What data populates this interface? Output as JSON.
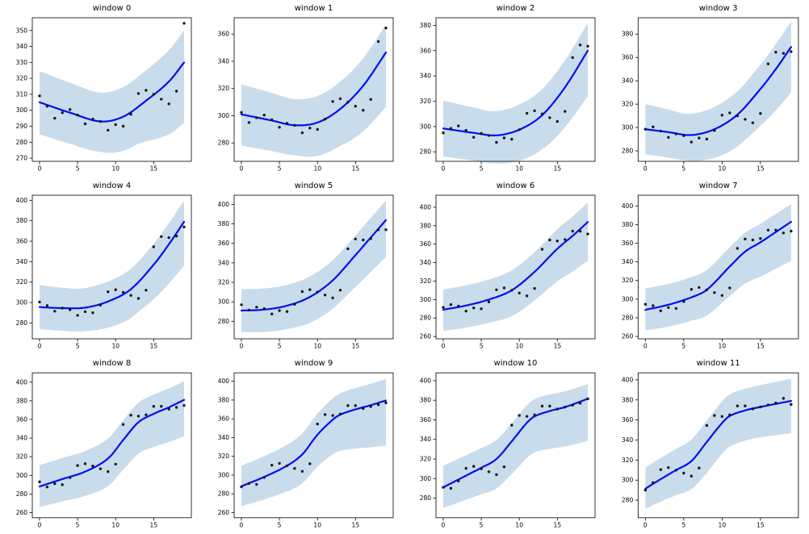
{
  "figure": {
    "background": "#ffffff",
    "rows": 3,
    "cols": 4
  },
  "chart_data": {
    "type": "scatter",
    "title": "",
    "xlabel": "",
    "ylabel": "",
    "grid": false,
    "legend": "none",
    "xticks": [
      0,
      5,
      10,
      15
    ],
    "xlim": [
      -0.95,
      19.95
    ],
    "colors": {
      "line": "#0010ee",
      "band": "#c8dcec",
      "points": "#1a1a1a",
      "frame": "#000000",
      "text": "#000000"
    },
    "windows": [
      {
        "title": "window 0",
        "scatter": [
          309,
          302.5,
          295,
          298.5,
          300.5,
          297,
          291.5,
          294.5,
          293,
          287.5,
          291,
          290,
          297.5,
          310.5,
          312.5,
          310,
          307,
          304,
          312,
          354.5
        ],
        "line": [
          [
            0,
            305
          ],
          [
            4,
            298.5
          ],
          [
            8,
            293
          ],
          [
            11,
            296
          ],
          [
            14,
            306
          ],
          [
            17,
            318
          ],
          [
            19,
            330
          ]
        ],
        "upper_off": [
          [
            0,
            19.5
          ],
          [
            8,
            18
          ],
          [
            19,
            20
          ]
        ],
        "lower_off": [
          [
            0,
            20
          ],
          [
            8,
            19
          ],
          [
            13,
            23
          ],
          [
            19,
            38
          ]
        ],
        "yticks": [
          270,
          280,
          290,
          300,
          310,
          320,
          330,
          340,
          350
        ],
        "ylim": [
          268,
          358
        ]
      },
      {
        "title": "window 1",
        "scatter": [
          302.5,
          295,
          298.5,
          300.5,
          297,
          291.5,
          294.5,
          293,
          287.5,
          291,
          290,
          297.5,
          310.5,
          312.5,
          310,
          307,
          304,
          312,
          354.5,
          364.5
        ],
        "line": [
          [
            0,
            301
          ],
          [
            4,
            296.5
          ],
          [
            7,
            293
          ],
          [
            10,
            295
          ],
          [
            13,
            305
          ],
          [
            16,
            322
          ],
          [
            19,
            346.5
          ]
        ],
        "upper_off": [
          [
            0,
            22
          ],
          [
            7,
            19
          ],
          [
            13,
            20
          ],
          [
            19,
            20.5
          ]
        ],
        "lower_off": [
          [
            0,
            23
          ],
          [
            7,
            22
          ],
          [
            13,
            27
          ],
          [
            19,
            40
          ]
        ],
        "yticks": [
          280,
          300,
          320,
          340,
          360
        ],
        "ylim": [
          266.5,
          372
        ]
      },
      {
        "title": "window 2",
        "scatter": [
          295,
          298.5,
          300.5,
          297,
          291.5,
          294.5,
          293,
          287.5,
          291,
          290,
          297.5,
          310.5,
          312.5,
          310,
          307,
          304,
          312,
          354.5,
          364.5,
          363.5
        ],
        "line": [
          [
            0,
            298.5
          ],
          [
            4,
            295
          ],
          [
            7,
            293
          ],
          [
            10,
            297.5
          ],
          [
            13,
            309
          ],
          [
            16,
            331
          ],
          [
            19,
            360
          ]
        ],
        "upper_off": [
          [
            0,
            22
          ],
          [
            6,
            19
          ],
          [
            19,
            22
          ]
        ],
        "lower_off": [
          [
            0,
            22
          ],
          [
            7,
            22
          ],
          [
            13,
            27
          ],
          [
            19,
            36
          ]
        ],
        "yticks": [
          280,
          300,
          320,
          340,
          360,
          380
        ],
        "ylim": [
          272.5,
          386
        ]
      },
      {
        "title": "window 3",
        "scatter": [
          298.5,
          300.5,
          297,
          291.5,
          294.5,
          293,
          287.5,
          291,
          290,
          297.5,
          310.5,
          312.5,
          310,
          307,
          304,
          312,
          354.5,
          364.5,
          363.5,
          365
        ],
        "line": [
          [
            0,
            298.5
          ],
          [
            3,
            296
          ],
          [
            6,
            293.5
          ],
          [
            9,
            298.5
          ],
          [
            12,
            311
          ],
          [
            15,
            333
          ],
          [
            17,
            350
          ],
          [
            19,
            369
          ]
        ],
        "upper_off": [
          [
            0,
            21.5
          ],
          [
            5,
            18
          ],
          [
            19,
            22
          ]
        ],
        "lower_off": [
          [
            0,
            21.5
          ],
          [
            6,
            22
          ],
          [
            13,
            28
          ],
          [
            19,
            39
          ]
        ],
        "yticks": [
          280,
          300,
          320,
          340,
          360,
          380
        ],
        "ylim": [
          271,
          394
        ]
      },
      {
        "title": "window 4",
        "scatter": [
          300.5,
          297,
          291.5,
          294.5,
          293,
          287.5,
          291,
          290,
          297.5,
          310.5,
          312.5,
          310,
          307,
          304,
          312,
          354.5,
          364.5,
          363.5,
          365,
          374
        ],
        "line": [
          [
            0,
            295.5
          ],
          [
            3,
            294.5
          ],
          [
            6,
            295
          ],
          [
            9,
            301
          ],
          [
            12,
            313
          ],
          [
            15,
            337
          ],
          [
            17,
            357
          ],
          [
            19,
            379
          ]
        ],
        "upper_off": [
          [
            0,
            21.5
          ],
          [
            5,
            19
          ],
          [
            19,
            21
          ]
        ],
        "lower_off": [
          [
            0,
            21.5
          ],
          [
            6,
            23
          ],
          [
            13,
            29
          ],
          [
            19,
            43
          ]
        ],
        "yticks": [
          280,
          300,
          320,
          340,
          360,
          380,
          400
        ],
        "ylim": [
          264.5,
          405
        ]
      },
      {
        "title": "window 5",
        "scatter": [
          297,
          291.5,
          294.5,
          293,
          287.5,
          291,
          290,
          297.5,
          310.5,
          312.5,
          310,
          307,
          304,
          312,
          354.5,
          364.5,
          363.5,
          365,
          374,
          374
        ],
        "line": [
          [
            0,
            291
          ],
          [
            3,
            292
          ],
          [
            6,
            296
          ],
          [
            9,
            305
          ],
          [
            12,
            322
          ],
          [
            15,
            348
          ],
          [
            17,
            366
          ],
          [
            19,
            384
          ]
        ],
        "upper_off": [
          [
            0,
            22
          ],
          [
            19,
            20
          ]
        ],
        "lower_off": [
          [
            0,
            22
          ],
          [
            6,
            24
          ],
          [
            13,
            30
          ],
          [
            19,
            38
          ]
        ],
        "yticks": [
          280,
          300,
          320,
          340,
          360,
          380,
          400
        ],
        "ylim": [
          262,
          409.5
        ]
      },
      {
        "title": "window 6",
        "scatter": [
          291.5,
          294.5,
          293,
          287.5,
          291,
          290,
          297.5,
          310.5,
          312.5,
          310,
          307,
          304,
          312,
          354.5,
          364.5,
          363.5,
          365,
          374,
          374,
          371
        ],
        "line": [
          [
            0,
            289
          ],
          [
            3,
            293.5
          ],
          [
            6,
            300
          ],
          [
            9,
            310
          ],
          [
            12,
            330
          ],
          [
            15,
            355
          ],
          [
            17,
            369
          ],
          [
            19,
            384
          ]
        ],
        "upper_off": [
          [
            0,
            22
          ],
          [
            19,
            21
          ]
        ],
        "lower_off": [
          [
            0,
            23
          ],
          [
            6,
            25
          ],
          [
            13,
            32
          ],
          [
            19,
            42
          ]
        ],
        "yticks": [
          260,
          280,
          300,
          320,
          340,
          360,
          380,
          400
        ],
        "ylim": [
          257.5,
          413
        ]
      },
      {
        "title": "window 7",
        "scatter": [
          294.5,
          293,
          287.5,
          291,
          290,
          297.5,
          310.5,
          312.5,
          310,
          307,
          304,
          312,
          354.5,
          364.5,
          363.5,
          365,
          374,
          374,
          371,
          373
        ],
        "line": [
          [
            0,
            288.5
          ],
          [
            3,
            294
          ],
          [
            6,
            302
          ],
          [
            8,
            310
          ],
          [
            11,
            335
          ],
          [
            13,
            351
          ],
          [
            15,
            361
          ],
          [
            17,
            372
          ],
          [
            19,
            383
          ]
        ],
        "upper_off": [
          [
            0,
            23
          ],
          [
            19,
            19
          ]
        ],
        "lower_off": [
          [
            0,
            22
          ],
          [
            6,
            25
          ],
          [
            12,
            33
          ],
          [
            19,
            42
          ]
        ],
        "yticks": [
          260,
          280,
          300,
          320,
          340,
          360,
          380,
          400
        ],
        "ylim": [
          257.5,
          411.5
        ]
      },
      {
        "title": "window 8",
        "scatter": [
          293,
          287.5,
          291,
          290,
          297.5,
          310.5,
          312.5,
          310,
          307,
          304,
          312,
          354.5,
          364.5,
          363.5,
          365,
          374,
          374,
          371,
          373,
          375
        ],
        "line": [
          [
            0,
            288
          ],
          [
            3,
            296
          ],
          [
            6,
            304
          ],
          [
            9,
            318
          ],
          [
            11,
            338
          ],
          [
            13,
            357
          ],
          [
            15,
            366
          ],
          [
            17,
            373
          ],
          [
            19,
            381
          ]
        ],
        "upper_off": [
          [
            0,
            23
          ],
          [
            19,
            20
          ]
        ],
        "lower_off": [
          [
            0,
            22
          ],
          [
            6,
            26
          ],
          [
            11,
            32
          ],
          [
            19,
            39
          ]
        ],
        "yticks": [
          260,
          280,
          300,
          320,
          340,
          360,
          380,
          400
        ],
        "ylim": [
          254.5,
          410
        ]
      },
      {
        "title": "window 9",
        "scatter": [
          287.5,
          291,
          290,
          297.5,
          310.5,
          312.5,
          310,
          307,
          304,
          312,
          354.5,
          364.5,
          363.5,
          365,
          374,
          374,
          371,
          373,
          375,
          377
        ],
        "line": [
          [
            0,
            288
          ],
          [
            3,
            298
          ],
          [
            6,
            310
          ],
          [
            8,
            322
          ],
          [
            10,
            343
          ],
          [
            12,
            359
          ],
          [
            13,
            364.5
          ],
          [
            15,
            370
          ],
          [
            17,
            374.5
          ],
          [
            19,
            379.5
          ]
        ],
        "upper_off": [
          [
            0,
            22
          ],
          [
            19,
            23
          ]
        ],
        "lower_off": [
          [
            0,
            21
          ],
          [
            5,
            26
          ],
          [
            10,
            34
          ],
          [
            19,
            48
          ]
        ],
        "yticks": [
          260,
          280,
          300,
          320,
          340,
          360,
          380,
          400
        ],
        "ylim": [
          254.5,
          409
        ]
      },
      {
        "title": "window 10",
        "scatter": [
          291,
          290,
          297.5,
          310.5,
          312.5,
          310,
          307,
          304,
          312,
          354.5,
          364.5,
          363.5,
          365,
          374,
          374,
          371,
          373,
          375,
          377,
          381.5
        ],
        "line": [
          [
            0,
            291
          ],
          [
            3,
            303
          ],
          [
            5,
            311
          ],
          [
            7,
            320
          ],
          [
            9,
            338
          ],
          [
            11,
            357
          ],
          [
            12,
            363.5
          ],
          [
            14,
            369
          ],
          [
            16,
            373
          ],
          [
            19,
            381.5
          ]
        ],
        "upper_off": [
          [
            0,
            22
          ],
          [
            19,
            15
          ]
        ],
        "lower_off": [
          [
            0,
            21
          ],
          [
            5,
            27
          ],
          [
            10,
            35
          ],
          [
            19,
            43
          ]
        ],
        "yticks": [
          280,
          300,
          320,
          340,
          360,
          380,
          400
        ],
        "ylim": [
          260,
          408
        ]
      },
      {
        "title": "window 11",
        "scatter": [
          290,
          297.5,
          310.5,
          312.5,
          310,
          307,
          304,
          312,
          354.5,
          364.5,
          363.5,
          365,
          374,
          374,
          371,
          373,
          375,
          377,
          381.5,
          375.5
        ],
        "line": [
          [
            0,
            291.5
          ],
          [
            2,
            301
          ],
          [
            4,
            310
          ],
          [
            6,
            319
          ],
          [
            8,
            338
          ],
          [
            10,
            357
          ],
          [
            11,
            364
          ],
          [
            13,
            369.5
          ],
          [
            15,
            373
          ],
          [
            17,
            376
          ],
          [
            19,
            379
          ]
        ],
        "upper_off": [
          [
            0,
            21
          ],
          [
            19,
            22
          ]
        ],
        "lower_off": [
          [
            0,
            20
          ],
          [
            4,
            25
          ],
          [
            8,
            31
          ],
          [
            14,
            30
          ],
          [
            19,
            32
          ]
        ],
        "yticks": [
          280,
          300,
          320,
          340,
          360,
          380,
          400
        ],
        "ylim": [
          262.5,
          407
        ]
      }
    ]
  }
}
